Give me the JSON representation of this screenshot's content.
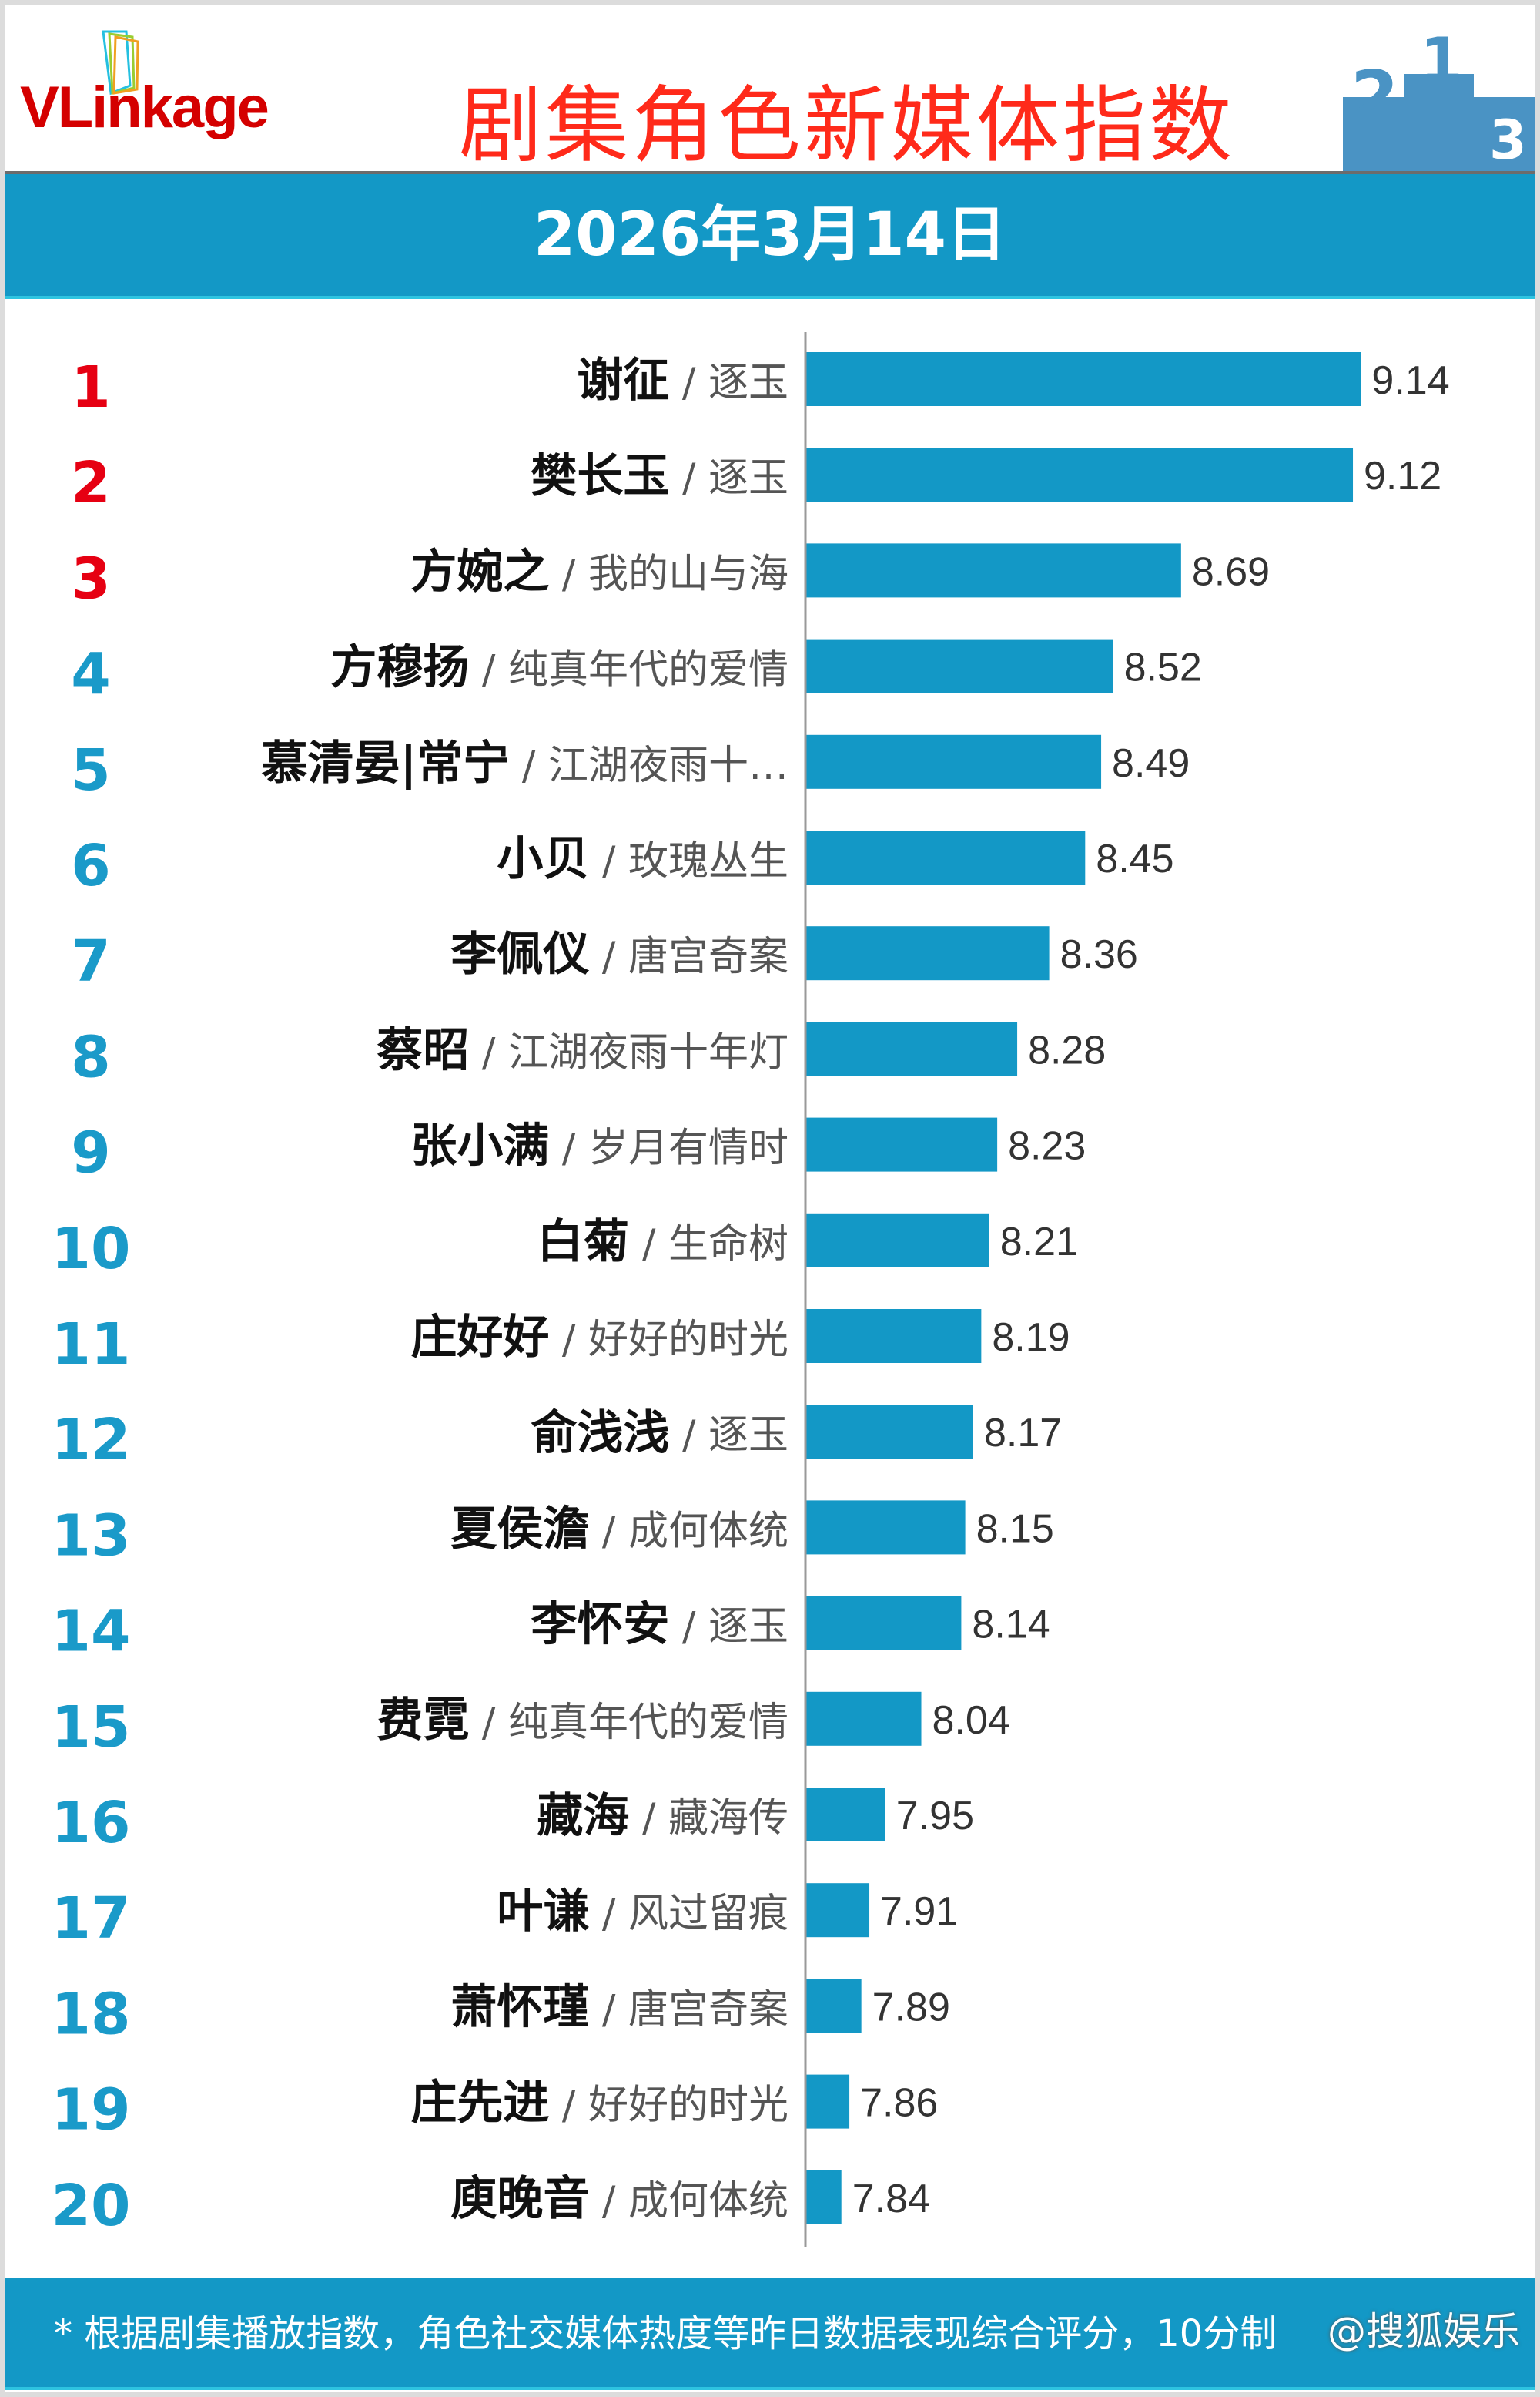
{
  "header": {
    "logo": "VLinkage",
    "title": "剧集角色新媒体指数",
    "date": "2026年3月14日"
  },
  "footer": {
    "note": "* 根据剧集播放指数，角色社交媒体热度等昨日数据表现综合评分，10分制",
    "watermark": "@搜狐娱乐"
  },
  "colors": {
    "bar": "#1398c6",
    "top_rank": "#e60012",
    "rank": "#1a9ac9",
    "name": "#111111",
    "show": "#555555"
  },
  "chart_data": {
    "type": "bar",
    "orientation": "horizontal",
    "title": "剧集角色新媒体指数",
    "xlim": [
      7.75,
      9.3
    ],
    "ranks": [
      1,
      2,
      3,
      4,
      5,
      6,
      7,
      8,
      9,
      10,
      11,
      12,
      13,
      14,
      15,
      16,
      17,
      18,
      19,
      20
    ],
    "names": [
      "谢征",
      "樊长玉",
      "方婉之",
      "方穆扬",
      "慕清晏|常宁",
      "小贝",
      "李佩仪",
      "蔡昭",
      "张小满",
      "白菊",
      "庄好好",
      "俞浅浅",
      "夏侯澹",
      "李怀安",
      "费霓",
      "藏海",
      "叶谦",
      "萧怀瑾",
      "庄先进",
      "庾晚音"
    ],
    "shows": [
      "逐玉",
      "逐玉",
      "我的山与海",
      "纯真年代的爱情",
      "江湖夜雨十…",
      "玫瑰丛生",
      "唐宫奇案",
      "江湖夜雨十年灯",
      "岁月有情时",
      "生命树",
      "好好的时光",
      "逐玉",
      "成何体统",
      "逐玉",
      "纯真年代的爱情",
      "藏海传",
      "风过留痕",
      "唐宫奇案",
      "好好的时光",
      "成何体统"
    ],
    "values": [
      9.14,
      9.12,
      8.69,
      8.52,
      8.49,
      8.45,
      8.36,
      8.28,
      8.23,
      8.21,
      8.19,
      8.17,
      8.15,
      8.14,
      8.04,
      7.95,
      7.91,
      7.89,
      7.86,
      7.84
    ]
  }
}
